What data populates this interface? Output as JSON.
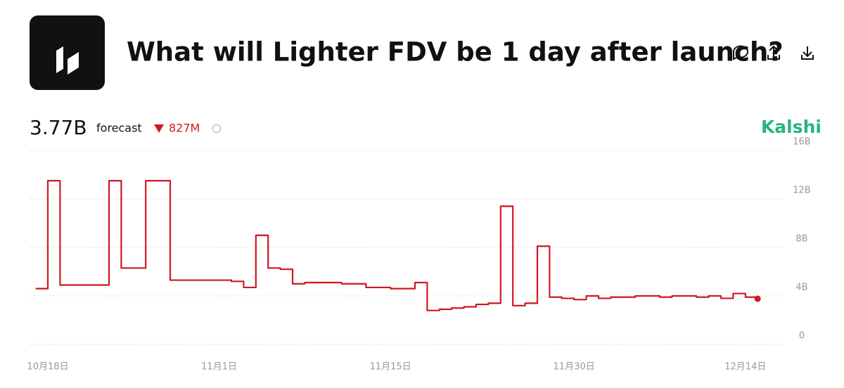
{
  "header": {
    "title": "What will Lighter FDV be 1 day after launch?",
    "forecast_value": "3.77B",
    "forecast_label": "forecast",
    "change": "827M",
    "brand": "Kalshi"
  },
  "chart_data": {
    "type": "line",
    "x": [
      "10-17",
      "10-18",
      "10-19",
      "10-20",
      "10-21",
      "10-22",
      "10-23",
      "10-24",
      "10-25",
      "10-26",
      "10-27",
      "10-28",
      "10-29",
      "10-30",
      "10-31",
      "11-01",
      "11-02",
      "11-03",
      "11-04",
      "11-05",
      "11-06",
      "11-07",
      "11-08",
      "11-09",
      "11-10",
      "11-11",
      "11-12",
      "11-13",
      "11-14",
      "11-15",
      "11-16",
      "11-17",
      "11-18",
      "11-19",
      "11-20",
      "11-21",
      "11-22",
      "11-23",
      "11-24",
      "11-25",
      "11-26",
      "11-27",
      "11-28",
      "11-29",
      "11-30",
      "12-01",
      "12-02",
      "12-03",
      "12-04",
      "12-05",
      "12-06",
      "12-07",
      "12-08",
      "12-09",
      "12-10",
      "12-11",
      "12-12",
      "12-13",
      "12-14",
      "12-15"
    ],
    "series": [
      {
        "name": "FDV",
        "color": "#d01820",
        "values": [
          4.6,
          13.5,
          4.9,
          4.9,
          4.9,
          4.9,
          13.5,
          6.3,
          6.3,
          13.5,
          13.5,
          5.3,
          5.3,
          5.3,
          5.3,
          5.3,
          5.2,
          4.7,
          9.0,
          6.3,
          6.2,
          5.0,
          5.1,
          5.1,
          5.1,
          5.0,
          5.0,
          4.7,
          4.7,
          4.6,
          4.6,
          5.1,
          2.8,
          2.9,
          3.0,
          3.1,
          3.3,
          3.4,
          11.4,
          3.2,
          3.4,
          8.1,
          3.9,
          3.8,
          3.7,
          4.0,
          3.8,
          3.9,
          3.9,
          4.0,
          4.0,
          3.9,
          4.0,
          4.0,
          3.9,
          4.0,
          3.8,
          4.2,
          3.9,
          3.77
        ]
      }
    ],
    "xlim": [
      "10-16",
      "12-17"
    ],
    "xticks": [
      {
        "value": "10-18",
        "label": "10月18日"
      },
      {
        "value": "11-01",
        "label": "11月1日"
      },
      {
        "value": "11-15",
        "label": "11月15日"
      },
      {
        "value": "11-30",
        "label": "11月30日"
      },
      {
        "value": "12-14",
        "label": "12月14日"
      }
    ],
    "ylim": [
      0,
      16
    ],
    "yticks": [
      0,
      {
        "value": 4,
        "label": "4B"
      },
      {
        "value": 8,
        "label": "8B"
      },
      {
        "value": 12,
        "label": "12B"
      },
      {
        "value": 16,
        "label": "16B"
      }
    ],
    "grid": true
  }
}
